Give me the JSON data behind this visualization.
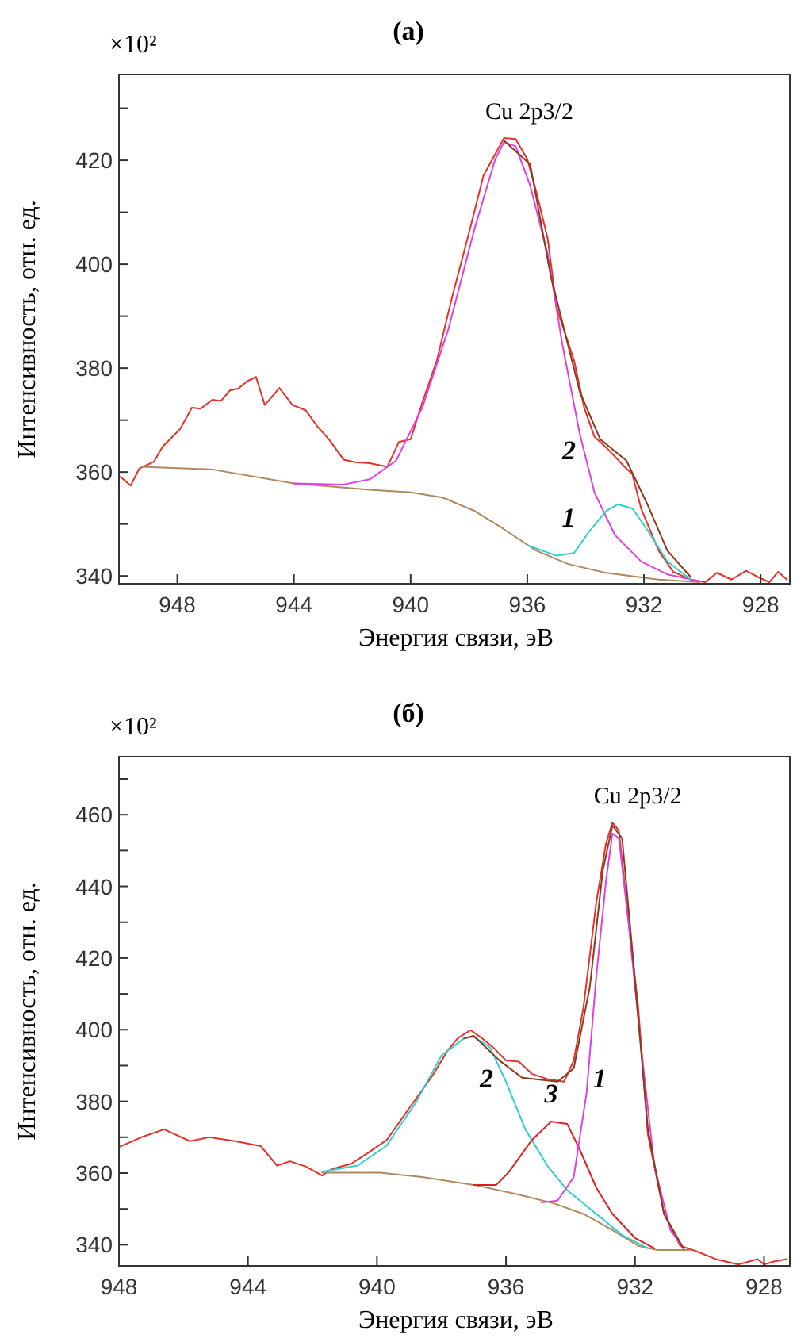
{
  "chart_data": [
    {
      "type": "line",
      "title": "(a)",
      "xlabel": "Энергия связи, эВ",
      "ylabel": "Интенсивность, отн. ед.",
      "annotations": [
        "×10²",
        "Cu 2p3/2"
      ],
      "xlim": [
        950,
        927
      ],
      "ylim": [
        338.5,
        436.5
      ],
      "xticks": [
        948,
        944,
        940,
        936,
        932,
        928
      ],
      "yticks": [
        340,
        {
          "value": 350,
          "label": null
        },
        360,
        {
          "value": 370,
          "label": null
        },
        380,
        {
          "value": 390,
          "label": null
        },
        400,
        {
          "value": 410,
          "label": null
        },
        420,
        {
          "value": 430,
          "label": null
        }
      ],
      "series": [
        {
          "color": "#e8302a",
          "x": [
            949.95,
            949.6,
            949.3,
            948.8,
            948.5,
            947.9,
            947.5,
            947.2,
            946.8,
            946.5,
            946.2,
            945.9,
            945.6,
            945.3,
            945.0,
            944.5,
            944.05,
            943.6,
            943.2,
            942.8,
            942.3,
            941.9,
            941.4,
            940.8,
            940.4,
            940.0,
            939.6,
            939.1,
            938.6,
            938.0,
            937.5,
            937.0,
            936.8,
            936.4,
            936.0,
            935.7,
            935.3,
            935.0,
            934.4,
            934.05,
            933.7,
            933.2,
            932.7,
            932.4,
            932.1,
            931.5,
            931.0,
            930.4,
            929.9,
            929.5,
            929.0,
            928.5,
            928.1,
            927.7,
            927.4,
            927.1
          ],
          "values": [
            359.1,
            357.4,
            360.7,
            362,
            364.9,
            368.3,
            372.4,
            372.2,
            373.9,
            373.7,
            375.7,
            376.1,
            377.5,
            378.3,
            372.9,
            376.2,
            372.9,
            371.9,
            368.8,
            366.3,
            362.4,
            361.9,
            361.7,
            361,
            365.8,
            366.3,
            373.4,
            381.5,
            393.2,
            406,
            417.1,
            422.2,
            424.3,
            424.1,
            420.2,
            414.1,
            404.9,
            391.7,
            381.5,
            372.4,
            366.8,
            364.2,
            361.2,
            359.6,
            353,
            344.9,
            340.8,
            339.3,
            338.8,
            340.6,
            339.3,
            341,
            339.8,
            338.8,
            340.8,
            339.3
          ]
        },
        {
          "color": "#b08860",
          "x": [
            949.2,
            946.8,
            944.0,
            941.4,
            940.0,
            938.9,
            937.8,
            936.8,
            935.7,
            934.6,
            933.3,
            931.5,
            930.1
          ],
          "values": [
            361,
            360.5,
            357.8,
            356.6,
            356.1,
            355.1,
            352.5,
            349,
            344.9,
            342.3,
            340.6,
            339.3,
            338.8
          ]
        },
        {
          "name": "2",
          "color": "#e040e0",
          "x": [
            944.0,
            942.3,
            941.4,
            940.5,
            939.6,
            938.7,
            937.8,
            937.1,
            936.8,
            936.4,
            935.9,
            935.3,
            934.8,
            934.2,
            933.7,
            933.0,
            932.1,
            931.2,
            930.1
          ],
          "values": [
            357.8,
            357.6,
            358.6,
            362.2,
            372.4,
            387.6,
            407,
            420.2,
            423.5,
            422.7,
            415.1,
            401.9,
            384.6,
            367.3,
            356.1,
            347.9,
            342.8,
            340.3,
            339
          ]
        },
        {
          "name": "1",
          "color": "#30d0d0",
          "x": [
            936.0,
            935.0,
            934.4,
            933.9,
            933.3,
            932.9,
            932.4,
            931.9,
            931.2,
            930.4
          ],
          "values": [
            345.9,
            343.9,
            344.4,
            348.4,
            352.5,
            353.8,
            353,
            349,
            342.8,
            339.3
          ]
        },
        {
          "color": "#8b3a1a",
          "x": [
            936.8,
            935.9,
            935.2,
            934.2,
            933.5,
            932.6,
            931.9,
            931.2,
            930.4
          ],
          "values": [
            423.8,
            419.2,
            397.8,
            375.4,
            366.3,
            362.2,
            354,
            344.9,
            339.8
          ]
        }
      ]
    },
    {
      "type": "line",
      "title": "(б)",
      "xlabel": "Энергия связи, эВ",
      "ylabel": "Интенсивность, отн. ед.",
      "annotations": [
        "×10²",
        "Cu 2p3/2"
      ],
      "xlim": [
        948,
        927.2
      ],
      "ylim": [
        334.1,
        476.2
      ],
      "xticks": [
        948,
        944,
        940,
        936,
        932,
        928
      ],
      "yticks": [
        340,
        {
          "value": 350,
          "label": null
        },
        360,
        {
          "value": 370,
          "label": null
        },
        380,
        {
          "value": 390,
          "label": null
        },
        400,
        {
          "value": 410,
          "label": null
        },
        420,
        {
          "value": 430,
          "label": null
        },
        440,
        {
          "value": 450,
          "label": null
        },
        460,
        {
          "value": 470,
          "label": null
        }
      ],
      "series": [
        {
          "color": "#e8302a",
          "x": [
            948.0,
            947.3,
            946.6,
            945.8,
            945.2,
            944.4,
            943.6,
            943.1,
            942.7,
            942.2,
            941.7,
            941.4,
            940.8,
            940.3,
            939.7,
            939.0,
            938.3,
            937.8,
            937.5,
            937.1,
            936.8,
            936.4,
            936.0,
            935.6,
            935.2,
            934.7,
            934.2,
            933.9,
            933.6,
            933.2,
            932.9,
            932.7,
            932.5,
            932.3,
            931.9,
            931.6,
            931.1,
            930.6,
            930.1,
            929.5,
            928.8,
            928.2,
            928.0,
            927.7,
            927.3
          ],
          "values": [
            367.3,
            370,
            372.2,
            368.9,
            370,
            368.9,
            367.5,
            362.1,
            363.3,
            361.8,
            359.3,
            361.1,
            362.6,
            365.5,
            369.2,
            378.1,
            386.9,
            394.3,
            397.6,
            399.9,
            398,
            395.1,
            391.4,
            391.1,
            387.7,
            386.2,
            385.5,
            391.4,
            406.1,
            435.6,
            451.9,
            457.8,
            455.6,
            438.6,
            406.1,
            370.7,
            348.6,
            339.7,
            338.2,
            336,
            334.5,
            336,
            334.5,
            335.3,
            336
          ]
        },
        {
          "color": "#b08860",
          "x": [
            941.7,
            939.9,
            938.6,
            937.0,
            935.7,
            934.5,
            933.6,
            932.7,
            931.9,
            931.3,
            930.3
          ],
          "values": [
            360.1,
            360.1,
            358.9,
            356.7,
            354.2,
            351.5,
            348.6,
            344.1,
            339.7,
            338.5,
            338.5
          ]
        },
        {
          "name": "2",
          "color": "#30d0d0",
          "x": [
            941.7,
            940.6,
            939.7,
            938.8,
            938.0,
            937.3,
            937.0,
            936.5,
            936.0,
            935.4,
            934.7,
            934.1,
            933.2,
            932.4,
            931.6
          ],
          "values": [
            360.4,
            362.1,
            367.7,
            379.6,
            392.8,
            397.6,
            398,
            395.1,
            385.5,
            372.2,
            361.8,
            355.2,
            348.6,
            342.7,
            339
          ]
        },
        {
          "name": "3",
          "color": "#e02020",
          "x": [
            937.0,
            936.3,
            935.9,
            935.2,
            934.6,
            934.1,
            933.7,
            933.2,
            932.7,
            932.0,
            931.4
          ],
          "values": [
            356.7,
            356.7,
            360.4,
            369.2,
            374.4,
            373.7,
            366.3,
            355.9,
            348.6,
            341.9,
            339
          ]
        },
        {
          "name": "1",
          "color": "#e040e0",
          "x": [
            934.9,
            934.4,
            933.9,
            933.5,
            933.2,
            932.9,
            932.7,
            932.5,
            932.2,
            931.8,
            931.4,
            930.9,
            930.5
          ],
          "values": [
            351.8,
            352.3,
            358.9,
            382.5,
            415,
            441.5,
            454.8,
            453.4,
            429.7,
            394.3,
            361.8,
            344.1,
            339
          ]
        },
        {
          "color": "#8b3a1a",
          "x": [
            937.3,
            937.0,
            936.2,
            935.5,
            934.4,
            933.9,
            933.4,
            933.0,
            932.7,
            932.4,
            932.1,
            931.6,
            931.1,
            930.5
          ],
          "values": [
            397.6,
            398.3,
            391.4,
            386.6,
            385.5,
            389.2,
            412,
            444.4,
            457,
            453.4,
            423.8,
            372.2,
            348.6,
            339
          ]
        }
      ]
    }
  ]
}
